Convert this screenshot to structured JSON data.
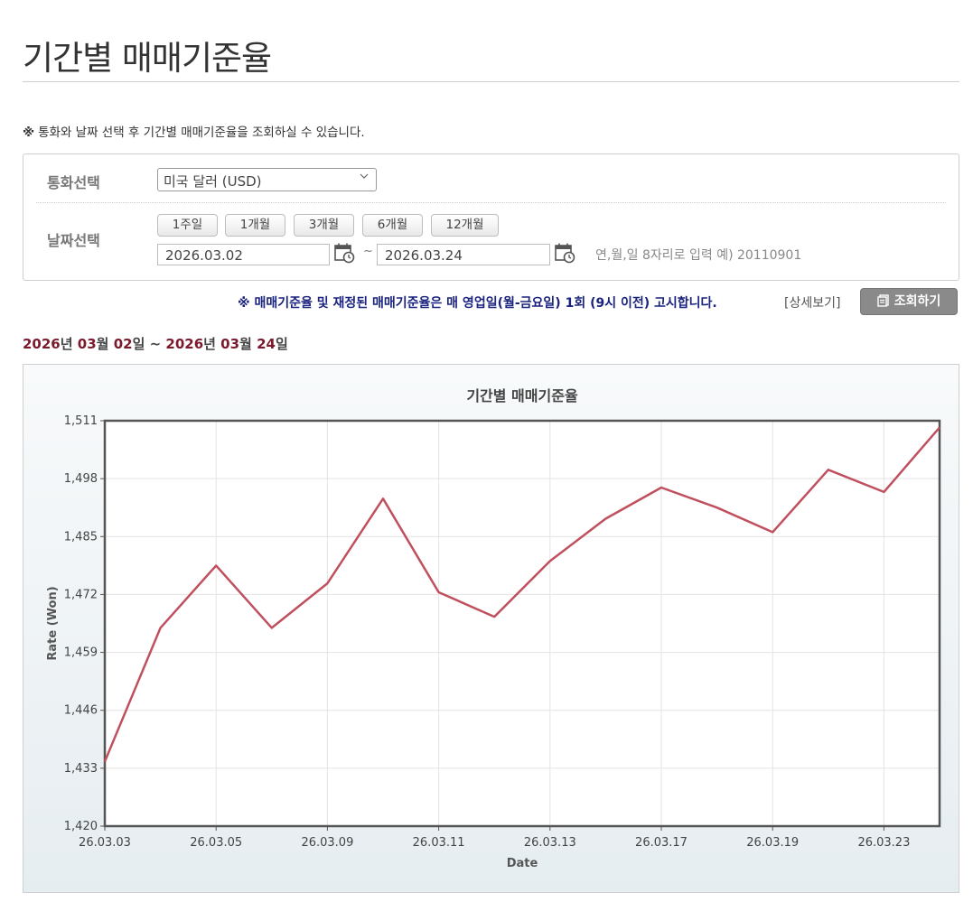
{
  "page": {
    "title": "기간별 매매기준율",
    "notice_mark": "※",
    "notice_text": "통화와 날짜 선택 후 기간별 매매기준율을 조회하실 수 있습니다."
  },
  "search": {
    "currency_label": "통화선택",
    "currency_value": "미국 달러 (USD)",
    "date_label": "날짜선택",
    "period_buttons": [
      "1주일",
      "1개월",
      "3개월",
      "6개월",
      "12개월"
    ],
    "start_date": "2026.03.02",
    "end_date": "2026.03.24",
    "tilde": "~",
    "date_hint": "연,월,일 8자리로 입력 예) 20110901"
  },
  "notice_bar": {
    "text": "※ 매매기준율 및 재정된 매매기준율은 매 영업일(월-금요일) 1회 (9시 이전) 고시합니다.",
    "detail_link": "[상세보기]",
    "search_button": "조회하기"
  },
  "range": {
    "start_year": "2026",
    "start_year_unit": "년 ",
    "start_month": "03",
    "start_month_unit": "월 ",
    "start_day": "02",
    "start_day_unit": "일",
    "sep": " ~ ",
    "end_year": "2026",
    "end_year_unit": "년 ",
    "end_month": "03",
    "end_month_unit": "월 ",
    "end_day": "24",
    "end_day_unit": "일"
  },
  "chart_data": {
    "type": "line",
    "title": "기간별 매매기준율",
    "xlabel": "Date",
    "ylabel": "Rate (Won)",
    "x": [
      "26.03.03",
      "26.03.04",
      "26.03.05",
      "26.03.06",
      "26.03.09",
      "26.03.10",
      "26.03.11",
      "26.03.12",
      "26.03.13",
      "26.03.16",
      "26.03.17",
      "26.03.18",
      "26.03.19",
      "26.03.20",
      "26.03.23",
      "26.03.24"
    ],
    "x_tick_labels": [
      "26.03.03",
      "26.03.05",
      "26.03.09",
      "26.03.11",
      "26.03.13",
      "26.03.17",
      "26.03.19",
      "26.03.23"
    ],
    "series": [
      {
        "values": [
          1434.5,
          1464.5,
          1478.5,
          1464.5,
          1474.5,
          1493.5,
          1472.5,
          1467.0,
          1479.5,
          1489.0,
          1496.0,
          1491.5,
          1486.0,
          1500.0,
          1495.0,
          1509.5
        ]
      }
    ],
    "ylim": [
      1420,
      1511
    ],
    "y_ticks": [
      "1,420",
      "1,433",
      "1,446",
      "1,459",
      "1,472",
      "1,485",
      "1,498",
      "1,511"
    ],
    "line_color": "#c0505e",
    "grid": true
  }
}
